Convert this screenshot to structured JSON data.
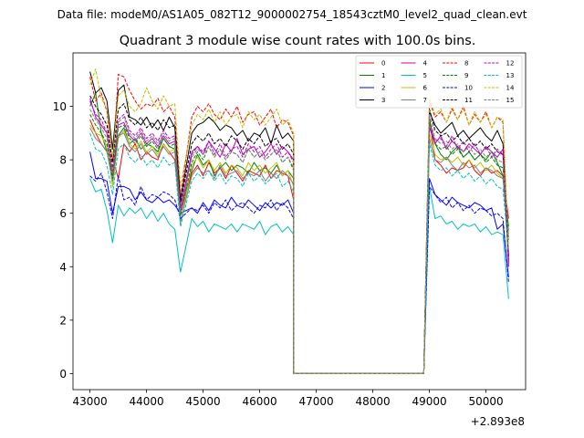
{
  "figure": {
    "suptitle": "Data file: modeM0/AS1A05_082T12_9000002754_18543cztM0_level2_quad_clean.evt",
    "title": "Quadrant 3 module wise count rates with 100.0s bins.",
    "offset_label": "+2.893e8"
  },
  "chart_data": {
    "type": "line",
    "title": "Quadrant 3 module wise count rates with 100.0s bins.",
    "xlabel": "",
    "ylabel": "",
    "x_offset": 289300000,
    "xlim": [
      42700,
      50700
    ],
    "ylim": [
      -0.6,
      12.0
    ],
    "xticks": [
      43000,
      44000,
      45000,
      46000,
      47000,
      48000,
      49000,
      50000
    ],
    "xtick_labels": [
      "43000",
      "44000",
      "45000",
      "46000",
      "47000",
      "48000",
      "49000",
      "50000"
    ],
    "yticks": [
      0,
      2,
      4,
      6,
      8,
      10
    ],
    "ytick_labels": [
      "0",
      "2",
      "4",
      "6",
      "8",
      "10"
    ],
    "grid": false,
    "legend_placement": "top-right",
    "segments": [
      {
        "x_start": 43000,
        "step": 100,
        "count": 17
      },
      {
        "x_start": 44800,
        "step": 100,
        "count": 19
      },
      {
        "x_start": 46600,
        "step": 100,
        "count": 24
      },
      {
        "x_start": 49000,
        "step": 100,
        "count": 15
      }
    ],
    "series": [
      {
        "name": "0",
        "color": "#ff0000",
        "dash": "solid",
        "s1": [
          9.5,
          9.0,
          8.6,
          8.3,
          8.1,
          7.3,
          8.6,
          8.3,
          8.6,
          8.0,
          8.3,
          8.1,
          8.0,
          8.6,
          8.3,
          8.0,
          6.0
        ],
        "s2": [
          7.5,
          7.8,
          7.4,
          7.9,
          7.5,
          7.7,
          7.3,
          7.8,
          7.5,
          7.2,
          7.6,
          7.5,
          7.4,
          7.8,
          7.3,
          7.6,
          7.5,
          7.4,
          6.5
        ],
        "s4": [
          9.6,
          8.0,
          7.8,
          7.5,
          7.7,
          7.6,
          7.7,
          8.0,
          7.6,
          7.4,
          7.7,
          7.5,
          7.6,
          7.4,
          5.8
        ]
      },
      {
        "name": "1",
        "color": "#008000",
        "dash": "solid",
        "s1": [
          10.0,
          10.5,
          9.0,
          8.3,
          7.5,
          8.9,
          9.2,
          8.6,
          8.8,
          8.4,
          8.6,
          8.5,
          8.3,
          8.8,
          8.5,
          8.4,
          6.2
        ],
        "s2": [
          7.6,
          8.2,
          7.8,
          8.0,
          7.4,
          7.7,
          7.9,
          7.6,
          7.8,
          7.7,
          7.5,
          7.9,
          7.6,
          7.7,
          7.5,
          7.8,
          7.4,
          7.6,
          7.3
        ],
        "s4": [
          9.4,
          8.6,
          8.2,
          8.0,
          8.3,
          8.5,
          8.1,
          8.3,
          8.0,
          8.2,
          8.0,
          8.3,
          7.9,
          7.4,
          5.5
        ]
      },
      {
        "name": "2",
        "color": "#0000ff",
        "dash": "solid",
        "s1": [
          8.3,
          7.3,
          7.3,
          7.2,
          6.0,
          7.0,
          7.0,
          6.9,
          6.5,
          6.8,
          6.5,
          6.4,
          6.6,
          6.4,
          6.5,
          6.3,
          6.0
        ],
        "s2": [
          6.2,
          6.0,
          6.4,
          6.1,
          6.5,
          6.3,
          6.2,
          6.6,
          6.3,
          6.2,
          6.5,
          6.3,
          6.1,
          6.4,
          6.2,
          6.4,
          6.3,
          6.5,
          6.0
        ],
        "s4": [
          7.3,
          6.7,
          6.5,
          6.3,
          6.6,
          6.4,
          6.3,
          6.2,
          6.4,
          6.3,
          6.1,
          6.2,
          5.4,
          5.6,
          3.6
        ]
      },
      {
        "name": "3",
        "color": "#000000",
        "dash": "solid",
        "s1": [
          11.3,
          10.5,
          10.7,
          10.2,
          8.4,
          10.6,
          10.8,
          9.6,
          9.5,
          9.3,
          9.6,
          9.2,
          9.5,
          9.1,
          9.6,
          9.2,
          6.5
        ],
        "s2": [
          9.0,
          9.3,
          9.4,
          9.6,
          9.4,
          9.1,
          9.3,
          9.2,
          8.9,
          9.1,
          8.7,
          9.0,
          8.9,
          9.2,
          8.6,
          9.3,
          8.8,
          9.0,
          8.7
        ],
        "s4": [
          9.8,
          9.3,
          9.0,
          9.2,
          9.4,
          8.9,
          9.1,
          8.8,
          9.0,
          9.2,
          8.9,
          8.7,
          9.1,
          8.6,
          4.2
        ]
      },
      {
        "name": "4",
        "color": "#bf00bf",
        "dash": "solid",
        "s1": [
          10.3,
          9.6,
          9.3,
          9.0,
          7.4,
          9.3,
          9.4,
          8.9,
          8.7,
          9.0,
          8.6,
          8.8,
          8.5,
          8.9,
          8.6,
          8.7,
          6.2
        ],
        "s2": [
          8.3,
          8.5,
          8.2,
          8.7,
          8.4,
          8.1,
          8.6,
          8.3,
          8.8,
          8.2,
          8.4,
          8.5,
          8.1,
          8.3,
          8.6,
          8.2,
          8.5,
          8.3,
          8.0
        ],
        "s4": [
          9.2,
          8.6,
          8.9,
          8.4,
          8.7,
          8.5,
          8.3,
          8.6,
          8.4,
          8.2,
          8.5,
          8.3,
          8.1,
          8.4,
          4.0
        ]
      },
      {
        "name": "5",
        "color": "#00bfbf",
        "dash": "solid",
        "s1": [
          7.3,
          6.8,
          6.9,
          6.1,
          4.9,
          6.3,
          5.9,
          6.2,
          6.0,
          6.2,
          5.8,
          6.1,
          5.7,
          6.0,
          5.6,
          5.4,
          3.8
        ],
        "s2": [
          5.8,
          5.5,
          5.7,
          5.3,
          5.6,
          5.5,
          5.4,
          5.6,
          5.3,
          5.6,
          5.5,
          5.4,
          5.7,
          5.2,
          5.5,
          5.6,
          5.3,
          5.5,
          5.2
        ],
        "s4": [
          7.0,
          5.8,
          5.9,
          5.6,
          5.7,
          5.4,
          5.6,
          5.5,
          5.6,
          5.3,
          5.5,
          5.2,
          5.3,
          5.2,
          2.8
        ]
      },
      {
        "name": "6",
        "color": "#bfbf00",
        "dash": "solid",
        "s1": [
          9.3,
          9.0,
          8.9,
          8.5,
          7.0,
          8.8,
          9.1,
          8.6,
          8.4,
          8.7,
          8.3,
          8.5,
          8.2,
          8.6,
          8.3,
          8.4,
          5.6
        ],
        "s2": [
          7.8,
          8.1,
          7.7,
          8.0,
          7.6,
          7.9,
          7.5,
          7.8,
          7.7,
          7.4,
          7.9,
          7.6,
          7.8,
          7.5,
          7.7,
          7.9,
          7.4,
          7.6,
          7.0
        ],
        "s4": [
          9.0,
          8.2,
          8.0,
          8.1,
          7.9,
          8.1,
          7.8,
          8.0,
          7.7,
          7.9,
          7.6,
          7.8,
          7.5,
          7.3,
          5.2
        ]
      },
      {
        "name": "7",
        "color": "#7f7f7f",
        "dash": "solid",
        "s1": [
          9.2,
          8.8,
          8.6,
          8.3,
          7.2,
          8.9,
          9.0,
          8.5,
          8.3,
          8.6,
          8.2,
          8.4,
          8.1,
          8.5,
          8.2,
          8.3,
          5.7
        ],
        "s2": [
          7.4,
          7.7,
          7.5,
          7.6,
          7.3,
          7.8,
          7.4,
          7.5,
          7.6,
          7.3,
          7.5,
          7.4,
          7.6,
          7.2,
          7.5,
          7.3,
          7.6,
          7.4,
          7.1
        ],
        "s4": [
          8.8,
          8.0,
          7.9,
          8.1,
          7.8,
          7.6,
          7.9,
          7.7,
          7.8,
          7.5,
          7.7,
          7.6,
          7.4,
          7.3,
          5.0
        ]
      },
      {
        "name": "8",
        "color": "#ff0000",
        "dash": "dashed",
        "s1": [
          11.1,
          10.2,
          10.5,
          9.8,
          7.6,
          11.2,
          11.1,
          10.6,
          10.2,
          9.9,
          10.1,
          10.0,
          10.3,
          9.8,
          10.0,
          9.6,
          6.6
        ],
        "s2": [
          9.6,
          10.0,
          9.8,
          10.1,
          9.7,
          9.5,
          9.9,
          9.6,
          10.0,
          9.4,
          9.7,
          9.8,
          9.3,
          9.6,
          9.9,
          9.2,
          9.5,
          9.4,
          8.9
        ],
        "s4": [
          10.2,
          9.6,
          9.8,
          9.4,
          9.9,
          9.5,
          10.0,
          9.3,
          9.7,
          9.4,
          9.8,
          9.2,
          9.6,
          9.4,
          4.4
        ]
      },
      {
        "name": "9",
        "color": "#008000",
        "dash": "dashed",
        "s1": [
          9.7,
          9.3,
          9.0,
          8.6,
          7.3,
          9.2,
          9.3,
          8.8,
          8.6,
          8.9,
          8.5,
          8.7,
          8.4,
          8.8,
          8.5,
          8.6,
          5.9
        ],
        "s2": [
          7.9,
          8.3,
          8.0,
          8.5,
          8.1,
          8.4,
          8.0,
          8.3,
          8.2,
          7.9,
          8.4,
          8.1,
          8.3,
          8.0,
          8.2,
          8.4,
          7.9,
          8.1,
          7.6
        ],
        "s4": [
          9.5,
          8.6,
          8.4,
          8.5,
          8.2,
          8.4,
          8.1,
          8.3,
          8.0,
          8.2,
          7.9,
          8.1,
          7.8,
          7.7,
          5.3
        ]
      },
      {
        "name": "10",
        "color": "#0000ff",
        "dash": "dashed",
        "s1": [
          7.4,
          7.2,
          7.5,
          6.8,
          5.8,
          7.4,
          6.5,
          6.6,
          6.3,
          7.0,
          6.5,
          6.7,
          6.6,
          6.8,
          6.7,
          6.5,
          5.8
        ],
        "s2": [
          6.2,
          6.1,
          6.3,
          6.0,
          6.4,
          6.2,
          6.5,
          6.1,
          6.3,
          6.4,
          6.2,
          6.0,
          6.3,
          6.2,
          6.5,
          6.1,
          6.4,
          6.2,
          5.8
        ],
        "s4": [
          7.0,
          6.7,
          6.4,
          6.6,
          6.2,
          6.4,
          6.1,
          6.3,
          6.0,
          6.2,
          6.1,
          5.9,
          6.0,
          5.8,
          3.4
        ]
      },
      {
        "name": "11",
        "color": "#000000",
        "dash": "dashed",
        "s1": [
          10.4,
          10.0,
          9.7,
          9.3,
          7.9,
          9.9,
          10.1,
          9.5,
          9.3,
          9.6,
          9.2,
          9.4,
          9.1,
          9.5,
          9.2,
          9.3,
          6.4
        ],
        "s2": [
          8.6,
          8.9,
          8.7,
          9.0,
          8.6,
          8.8,
          8.5,
          8.9,
          8.7,
          8.4,
          8.8,
          8.6,
          8.9,
          8.5,
          8.7,
          8.8,
          8.4,
          8.6,
          8.2
        ],
        "s4": [
          9.9,
          9.1,
          8.9,
          9.0,
          8.7,
          8.9,
          8.6,
          8.8,
          8.5,
          8.7,
          8.4,
          8.6,
          8.3,
          8.2,
          4.3
        ]
      },
      {
        "name": "12",
        "color": "#bf00bf",
        "dash": "dashed",
        "s1": [
          10.2,
          9.7,
          9.5,
          9.0,
          7.6,
          9.5,
          9.7,
          9.1,
          8.9,
          9.2,
          8.8,
          9.0,
          8.7,
          9.1,
          8.8,
          8.9,
          6.1
        ],
        "s2": [
          8.2,
          8.5,
          8.3,
          8.7,
          8.2,
          8.6,
          8.1,
          8.4,
          8.5,
          8.1,
          8.6,
          8.3,
          8.5,
          8.1,
          8.4,
          8.6,
          8.1,
          8.3,
          7.9
        ],
        "s4": [
          9.3,
          8.7,
          8.8,
          8.5,
          8.9,
          8.4,
          8.7,
          8.3,
          8.6,
          8.2,
          8.5,
          8.1,
          8.4,
          8.2,
          4.1
        ]
      },
      {
        "name": "13",
        "color": "#00bfbf",
        "dash": "dashed",
        "s1": [
          9.0,
          8.4,
          8.3,
          7.8,
          6.7,
          8.4,
          8.6,
          8.1,
          7.9,
          8.2,
          7.8,
          8.0,
          7.7,
          8.1,
          7.8,
          7.9,
          5.5
        ],
        "s2": [
          7.2,
          7.5,
          7.3,
          7.6,
          7.2,
          7.5,
          7.1,
          7.4,
          7.3,
          7.0,
          7.5,
          7.2,
          7.4,
          7.1,
          7.3,
          7.5,
          7.0,
          7.2,
          6.8
        ],
        "s4": [
          8.6,
          7.8,
          7.6,
          7.7,
          7.4,
          7.6,
          7.3,
          7.5,
          7.2,
          7.4,
          7.1,
          7.3,
          7.0,
          6.9,
          4.6
        ]
      },
      {
        "name": "14",
        "color": "#bfbf00",
        "dash": "dashed",
        "s1": [
          10.8,
          11.4,
          10.3,
          9.9,
          8.1,
          10.4,
          10.6,
          10.0,
          9.8,
          10.1,
          10.7,
          10.2,
          9.9,
          10.4,
          10.0,
          10.1,
          7.0
        ],
        "s2": [
          9.3,
          9.7,
          9.5,
          9.9,
          9.4,
          9.8,
          9.3,
          9.6,
          9.7,
          9.2,
          9.8,
          9.5,
          9.7,
          9.3,
          9.6,
          9.9,
          9.3,
          9.5,
          9.0
        ],
        "s4": [
          10.3,
          9.7,
          9.9,
          9.4,
          10.0,
          9.5,
          9.9,
          9.3,
          9.8,
          9.4,
          9.7,
          9.2,
          9.6,
          9.5,
          4.7
        ]
      },
      {
        "name": "15",
        "color": "#7f7f7f",
        "dash": "dashed",
        "s1": [
          9.9,
          9.5,
          9.2,
          8.8,
          7.5,
          9.4,
          9.6,
          9.0,
          8.8,
          9.1,
          8.7,
          8.9,
          8.6,
          9.0,
          8.7,
          8.8,
          6.0
        ],
        "s2": [
          8.1,
          8.4,
          8.2,
          8.5,
          8.1,
          8.4,
          8.0,
          8.3,
          8.2,
          7.9,
          8.4,
          8.1,
          8.3,
          8.0,
          8.2,
          8.4,
          7.9,
          8.1,
          7.7
        ],
        "s4": [
          9.7,
          8.8,
          8.6,
          8.7,
          8.4,
          8.6,
          8.3,
          8.5,
          8.2,
          8.4,
          8.1,
          8.3,
          8.0,
          7.9,
          5.1
        ]
      }
    ]
  }
}
